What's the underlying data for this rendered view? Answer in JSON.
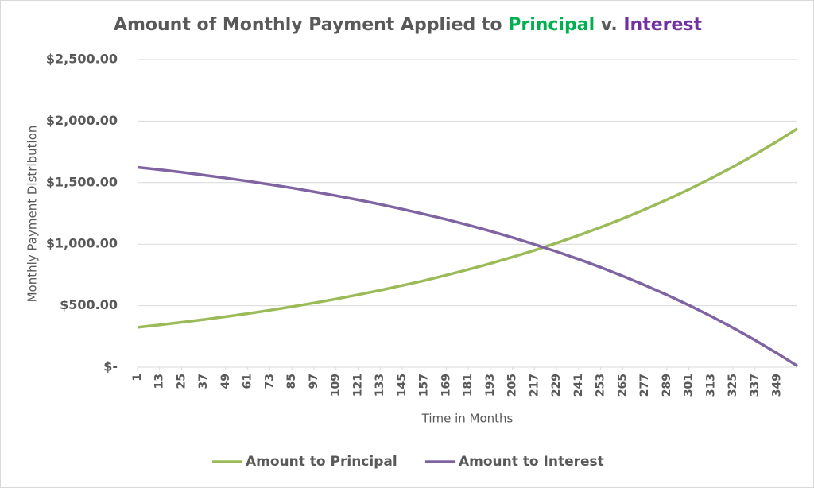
{
  "chart_data": {
    "type": "line",
    "title": [
      "Amount of Monthly Payment Applied to",
      "Principal",
      "v.",
      "Interest"
    ],
    "title_colors": [
      "#595959",
      "#00b050",
      "#595959",
      "#7030a0"
    ],
    "x_label": "Time in Months",
    "y_label": "Monthly Payment Distribution",
    "x": [
      1,
      13,
      25,
      37,
      49,
      61,
      73,
      85,
      97,
      109,
      121,
      133,
      145,
      157,
      169,
      181,
      193,
      205,
      217,
      229,
      241,
      253,
      265,
      277,
      289,
      301,
      313,
      325,
      337,
      349,
      360
    ],
    "series": [
      {
        "name": "Amount to Principal",
        "color": "#9bbb59",
        "values": [
          324,
          344,
          365,
          387,
          411,
          436,
          463,
          492,
          522,
          554,
          589,
          625,
          664,
          704,
          748,
          794,
          843,
          895,
          950,
          1009,
          1071,
          1137,
          1207,
          1282,
          1361,
          1445,
          1534,
          1628,
          1729,
          1835,
          1939
        ]
      },
      {
        "name": "Amount to Interest",
        "color": "#8064a2",
        "values": [
          1625,
          1605,
          1584,
          1561,
          1537,
          1512,
          1485,
          1457,
          1426,
          1394,
          1360,
          1324,
          1285,
          1244,
          1201,
          1155,
          1106,
          1054,
          998,
          940,
          878,
          812,
          741,
          667,
          588,
          504,
          415,
          320,
          220,
          113,
          10
        ]
      }
    ],
    "xlim": [
      1,
      360
    ],
    "xticks": [
      1,
      13,
      25,
      37,
      49,
      61,
      73,
      85,
      97,
      109,
      121,
      133,
      145,
      157,
      169,
      181,
      193,
      205,
      217,
      229,
      241,
      253,
      265,
      277,
      289,
      301,
      313,
      325,
      337,
      349
    ],
    "ylim": [
      0,
      2500
    ],
    "yticks": [
      {
        "value": 0,
        "label": "$-"
      },
      {
        "value": 500,
        "label": "$500.00"
      },
      {
        "value": 1000,
        "label": "$1,000.00"
      },
      {
        "value": 1500,
        "label": "$1,500.00"
      },
      {
        "value": 2000,
        "label": "$2,000.00"
      },
      {
        "value": 2500,
        "label": "$2,500.00"
      }
    ],
    "grid": true,
    "legend": "bottom"
  }
}
